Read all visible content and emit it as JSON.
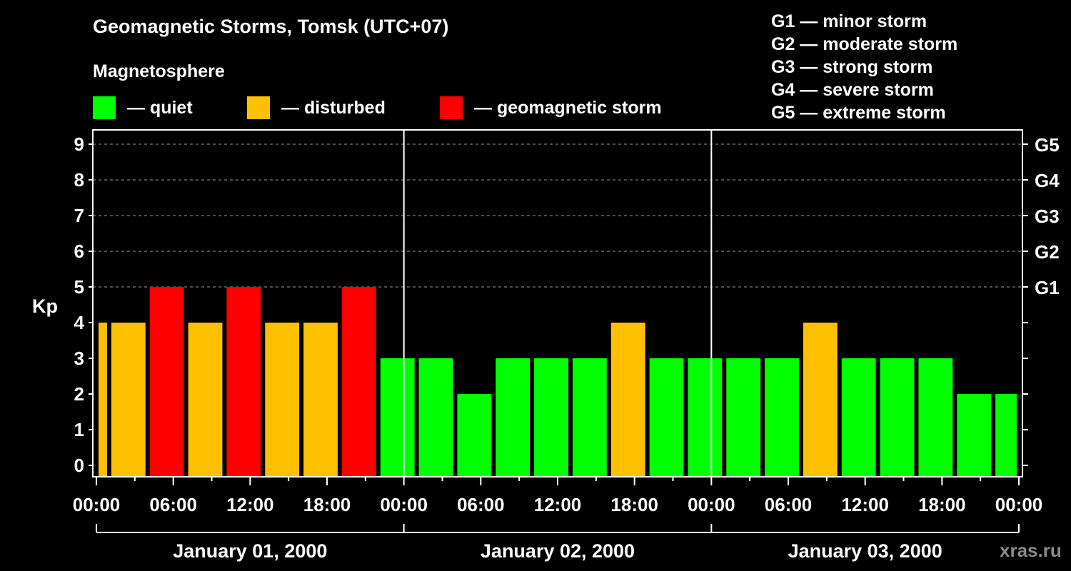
{
  "header": {
    "title": "Geomagnetic Storms, Tomsk (UTC+07)",
    "subtitle": "Magnetosphere"
  },
  "legend": [
    {
      "label": "— quiet",
      "color": "#00ff00"
    },
    {
      "label": "— disturbed",
      "color": "#ffc000"
    },
    {
      "label": "— geomagnetic storm",
      "color": "#ff0000"
    }
  ],
  "storm_levels": [
    "G1 — minor storm",
    "G2 — moderate storm",
    "G3 — strong storm",
    "G4 — severe storm",
    "G5 — extreme storm"
  ],
  "brand": "xras.ru",
  "colors": {
    "quiet": "#00ff00",
    "disturbed": "#ffc000",
    "storm": "#ff0000",
    "background": "#000000",
    "foreground": "#ffffff"
  },
  "chart_data": {
    "type": "bar",
    "ylabel": "Kp",
    "ylim": [
      0,
      9
    ],
    "yticks": [
      "0",
      "1",
      "2",
      "3",
      "4",
      "5",
      "6",
      "7",
      "8",
      "9"
    ],
    "right_ticks": [
      {
        "value": 5,
        "label": "G1"
      },
      {
        "value": 6,
        "label": "G2"
      },
      {
        "value": 7,
        "label": "G3"
      },
      {
        "value": 8,
        "label": "G4"
      },
      {
        "value": 9,
        "label": "G5"
      }
    ],
    "xticks": [
      "00:00",
      "06:00",
      "12:00",
      "18:00",
      "00:00",
      "06:00",
      "12:00",
      "18:00",
      "00:00",
      "06:00",
      "12:00",
      "18:00",
      "00:00"
    ],
    "days": [
      "January 01, 2000",
      "January 02, 2000",
      "January 03, 2000"
    ],
    "xlim_hours": [
      0,
      72
    ],
    "bars": [
      {
        "start": 0,
        "end": 1,
        "kp": 4,
        "level": "disturbed"
      },
      {
        "start": 1,
        "end": 4,
        "kp": 4,
        "level": "disturbed"
      },
      {
        "start": 4,
        "end": 7,
        "kp": 5,
        "level": "storm"
      },
      {
        "start": 7,
        "end": 10,
        "kp": 4,
        "level": "disturbed"
      },
      {
        "start": 10,
        "end": 13,
        "kp": 5,
        "level": "storm"
      },
      {
        "start": 13,
        "end": 16,
        "kp": 4,
        "level": "disturbed"
      },
      {
        "start": 16,
        "end": 19,
        "kp": 4,
        "level": "disturbed"
      },
      {
        "start": 19,
        "end": 22,
        "kp": 5,
        "level": "storm"
      },
      {
        "start": 22,
        "end": 25,
        "kp": 3,
        "level": "quiet"
      },
      {
        "start": 25,
        "end": 28,
        "kp": 3,
        "level": "quiet"
      },
      {
        "start": 28,
        "end": 31,
        "kp": 2,
        "level": "quiet"
      },
      {
        "start": 31,
        "end": 34,
        "kp": 3,
        "level": "quiet"
      },
      {
        "start": 34,
        "end": 37,
        "kp": 3,
        "level": "quiet"
      },
      {
        "start": 37,
        "end": 40,
        "kp": 3,
        "level": "quiet"
      },
      {
        "start": 40,
        "end": 43,
        "kp": 4,
        "level": "disturbed"
      },
      {
        "start": 43,
        "end": 46,
        "kp": 3,
        "level": "quiet"
      },
      {
        "start": 46,
        "end": 49,
        "kp": 3,
        "level": "quiet"
      },
      {
        "start": 49,
        "end": 52,
        "kp": 3,
        "level": "quiet"
      },
      {
        "start": 52,
        "end": 55,
        "kp": 3,
        "level": "quiet"
      },
      {
        "start": 55,
        "end": 58,
        "kp": 4,
        "level": "disturbed"
      },
      {
        "start": 58,
        "end": 61,
        "kp": 3,
        "level": "quiet"
      },
      {
        "start": 61,
        "end": 64,
        "kp": 3,
        "level": "quiet"
      },
      {
        "start": 64,
        "end": 67,
        "kp": 3,
        "level": "quiet"
      },
      {
        "start": 67,
        "end": 70,
        "kp": 2,
        "level": "quiet"
      },
      {
        "start": 70,
        "end": 72,
        "kp": 2,
        "level": "quiet"
      }
    ],
    "grid": "dashed at storm levels",
    "legend": "top"
  }
}
